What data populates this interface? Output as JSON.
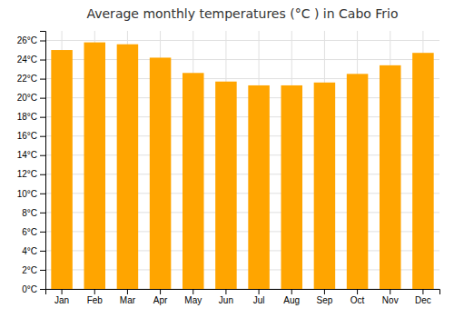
{
  "chart_data": {
    "type": "bar",
    "title": "Average monthly temperatures (°C ) in Cabo Frio",
    "categories": [
      "Jan",
      "Feb",
      "Mar",
      "Apr",
      "May",
      "Jun",
      "Jul",
      "Aug",
      "Sep",
      "Oct",
      "Nov",
      "Dec"
    ],
    "values": [
      25.0,
      25.8,
      25.6,
      24.2,
      22.6,
      21.7,
      21.3,
      21.3,
      21.6,
      22.5,
      23.4,
      24.7
    ],
    "color": "#FFA500",
    "ylim": [
      0,
      27
    ],
    "yticks": [
      {
        "value": 0,
        "label": "0°C"
      },
      {
        "value": 2,
        "label": "2°C"
      },
      {
        "value": 4,
        "label": "4°C"
      },
      {
        "value": 6,
        "label": "6°C"
      },
      {
        "value": 8,
        "label": "8°C"
      },
      {
        "value": 10,
        "label": "10°C"
      },
      {
        "value": 12,
        "label": "12°C"
      },
      {
        "value": 14,
        "label": "14°C"
      },
      {
        "value": 16,
        "label": "16°C"
      },
      {
        "value": 18,
        "label": "18°C"
      },
      {
        "value": 20,
        "label": "20°C"
      },
      {
        "value": 22,
        "label": "22°C"
      },
      {
        "value": 24,
        "label": "24°C"
      },
      {
        "value": 26,
        "label": "26°C"
      }
    ],
    "grid": true
  }
}
